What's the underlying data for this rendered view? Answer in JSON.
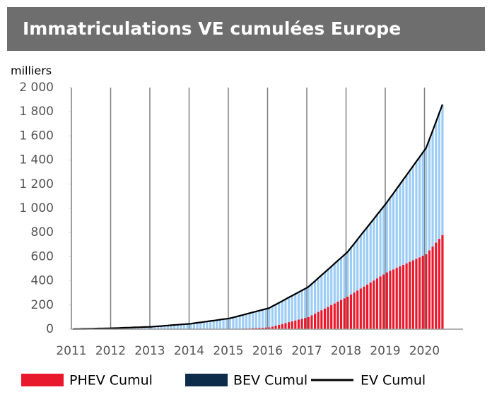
{
  "chart_data": {
    "type": "stacked_bar_line",
    "title": "Immatriculations VE cumulées  Europe",
    "y_unit": "milliers",
    "categories": [
      "2011",
      null,
      null,
      null,
      null,
      null,
      null,
      null,
      null,
      null,
      null,
      null,
      "2012",
      null,
      null,
      null,
      null,
      null,
      null,
      null,
      null,
      null,
      null,
      null,
      "2013",
      null,
      null,
      null,
      null,
      null,
      null,
      null,
      null,
      null,
      null,
      null,
      "2014",
      null,
      null,
      null,
      null,
      null,
      null,
      null,
      null,
      null,
      null,
      null,
      "2015",
      null,
      null,
      null,
      null,
      null,
      null,
      null,
      null,
      null,
      null,
      null,
      "2016",
      null,
      null,
      null,
      null,
      null,
      null,
      null,
      null,
      null,
      null,
      null,
      "2017",
      null,
      null,
      null,
      null,
      null,
      null,
      null,
      null,
      null,
      null,
      null,
      "2018",
      null,
      null,
      null,
      null,
      null,
      null,
      null,
      null,
      null,
      null,
      null,
      "2019",
      null,
      null,
      null,
      null,
      null,
      null,
      null,
      null,
      null,
      null,
      null,
      "2020",
      null,
      null,
      null,
      null,
      null
    ],
    "series": [
      {
        "name": "PHEV Cumul",
        "color": "#e8192c",
        "kind": "bar",
        "values": [
          0,
          0,
          0,
          0,
          0,
          0,
          0,
          0,
          0,
          0,
          0,
          0,
          0,
          0,
          0,
          0,
          0,
          0,
          0,
          0,
          0,
          0,
          0,
          0,
          0,
          0,
          0,
          0,
          0,
          0,
          0,
          0,
          0,
          0,
          0,
          0,
          0,
          0,
          0,
          0,
          0,
          0,
          0,
          0,
          0,
          0,
          0,
          0,
          0,
          1,
          2,
          4,
          5,
          6,
          7,
          9,
          10,
          11,
          12,
          14,
          15,
          22,
          29,
          36,
          43,
          50,
          58,
          65,
          72,
          79,
          86,
          93,
          100,
          114,
          128,
          143,
          157,
          171,
          185,
          199,
          213,
          228,
          242,
          256,
          270,
          287,
          303,
          320,
          337,
          353,
          370,
          387,
          403,
          420,
          437,
          453,
          470,
          483,
          495,
          508,
          520,
          533,
          545,
          558,
          570,
          583,
          595,
          608,
          620,
          652,
          684,
          716,
          748,
          780
        ]
      },
      {
        "name": "BEV Cumul",
        "color": "#9dcdf5",
        "kind": "bar",
        "values": [
          1,
          2,
          2,
          3,
          3,
          4,
          4,
          5,
          6,
          6,
          7,
          7,
          8,
          9,
          10,
          11,
          12,
          13,
          14,
          15,
          16,
          17,
          18,
          19,
          20,
          22,
          24,
          26,
          28,
          30,
          33,
          35,
          37,
          39,
          41,
          43,
          45,
          49,
          53,
          56,
          60,
          64,
          68,
          71,
          75,
          79,
          83,
          86,
          90,
          96,
          102,
          107,
          113,
          119,
          126,
          131,
          137,
          143,
          149,
          154,
          160,
          168,
          175,
          183,
          190,
          198,
          205,
          212,
          220,
          227,
          235,
          242,
          250,
          260,
          270,
          280,
          290,
          300,
          310,
          320,
          330,
          340,
          350,
          360,
          370,
          387,
          405,
          423,
          440,
          458,
          475,
          492,
          510,
          528,
          545,
          563,
          580,
          605,
          630,
          655,
          680,
          705,
          730,
          755,
          780,
          805,
          830,
          855,
          880,
          920,
          960,
          1000,
          1040,
          1080
        ]
      },
      {
        "name": "EV Cumul",
        "color": "#000000",
        "kind": "line",
        "values": [
          1,
          2,
          2,
          3,
          3,
          4,
          4,
          5,
          6,
          6,
          7,
          7,
          8,
          9,
          10,
          11,
          12,
          13,
          14,
          15,
          16,
          17,
          18,
          19,
          20,
          22,
          24,
          26,
          28,
          30,
          33,
          35,
          37,
          39,
          41,
          43,
          45,
          49,
          53,
          56,
          60,
          64,
          68,
          71,
          75,
          79,
          83,
          86,
          90,
          97,
          104,
          111,
          118,
          125,
          133,
          140,
          147,
          154,
          161,
          168,
          175,
          190,
          204,
          219,
          233,
          248,
          263,
          277,
          292,
          306,
          321,
          335,
          350,
          374,
          398,
          423,
          447,
          471,
          495,
          519,
          543,
          568,
          592,
          616,
          640,
          674,
          708,
          743,
          777,
          811,
          845,
          879,
          913,
          948,
          982,
          1016,
          1050,
          1088,
          1125,
          1163,
          1200,
          1238,
          1275,
          1313,
          1350,
          1388,
          1425,
          1463,
          1500,
          1572,
          1644,
          1716,
          1788,
          1860
        ]
      }
    ],
    "ylim": [
      0,
      2000
    ],
    "yticks": [
      0,
      200,
      400,
      600,
      800,
      {
        "value": 1000,
        "label": "1 000"
      },
      {
        "value": 1200,
        "label": "1 200"
      },
      {
        "value": 1400,
        "label": "1 400"
      },
      {
        "value": 1600,
        "label": "1 600"
      },
      {
        "value": 1800,
        "label": "1 800"
      },
      {
        "value": 2000,
        "label": "2 000"
      }
    ],
    "grid": "vertical-years",
    "legend": "bottom"
  }
}
